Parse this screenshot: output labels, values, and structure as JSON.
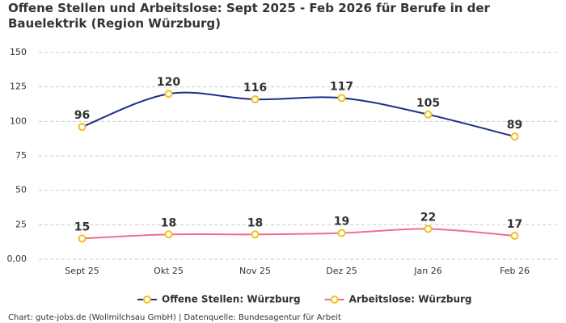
{
  "chart_data": {
    "type": "line",
    "title": "Offene Stellen und Arbeitslose: Sept 2025 - Feb 2026 für Berufe in der Bauelektrik (Region Würzburg)",
    "categories": [
      "Sept 25",
      "Okt 25",
      "Nov 25",
      "Dez 25",
      "Jan 26",
      "Feb 26"
    ],
    "series": [
      {
        "name": "Offene Stellen: Würzburg",
        "color": "#1f2d8c",
        "values": [
          96,
          120,
          116,
          117,
          105,
          89
        ]
      },
      {
        "name": "Arbeitslose: Würzburg",
        "color": "#ee6f8a",
        "values": [
          15,
          18,
          18,
          19,
          22,
          17
        ]
      }
    ],
    "marker_color": "#f2c21b",
    "ylim": [
      0,
      150
    ],
    "yticks": [
      {
        "value": 0,
        "label": "0,00"
      },
      25,
      50,
      75,
      100,
      125,
      150
    ],
    "grid": true,
    "legend": "bottom",
    "source": "Chart: gute-jobs.de (Wollmilchsau GmbH) | Datenquelle: Bundesagentur für Arbeit"
  }
}
